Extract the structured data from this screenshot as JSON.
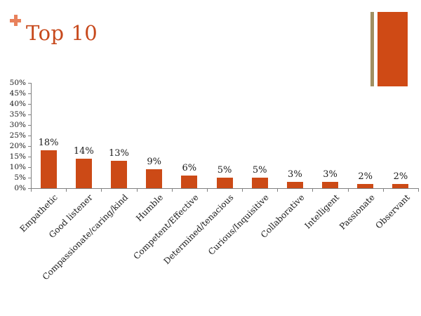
{
  "slide": {
    "title": "Top 10"
  },
  "icons": {
    "plus_decoration": "plus"
  },
  "colors": {
    "bar_orange": "#CC4A16",
    "decoration_orange": "#CF4A15",
    "decoration_tan": "#A29061",
    "title_text": "#C7491C",
    "plus_icon": "#E8815C",
    "axis_line": "#808080",
    "chart_text": "#1A1A1A"
  },
  "chart_data": {
    "type": "bar",
    "title": "Top 10",
    "categories": [
      "Empathetic",
      "Good listener",
      "Compassionate/caring/kind",
      "Humble",
      "Competent/Effective",
      "Determined/tenacious",
      "Curious/Inquisitive",
      "Collaborative",
      "Intelligent",
      "Passionate",
      "Observant"
    ],
    "values": [
      18,
      14,
      13,
      9,
      6,
      5,
      5,
      3,
      3,
      2,
      2
    ],
    "data_labels": [
      "18%",
      "14%",
      "13%",
      "9%",
      "6%",
      "5%",
      "5%",
      "3%",
      "3%",
      "2%",
      "2%"
    ],
    "xlabel": "",
    "ylabel": "",
    "ylim": [
      0,
      50
    ],
    "ytick_step": 5,
    "ytick_labels": [
      "0%",
      "5%",
      "10%",
      "15%",
      "20%",
      "25%",
      "30%",
      "35%",
      "40%",
      "45%",
      "50%"
    ],
    "grid": false,
    "legend": "none",
    "category_label_rotation_deg": -45
  }
}
